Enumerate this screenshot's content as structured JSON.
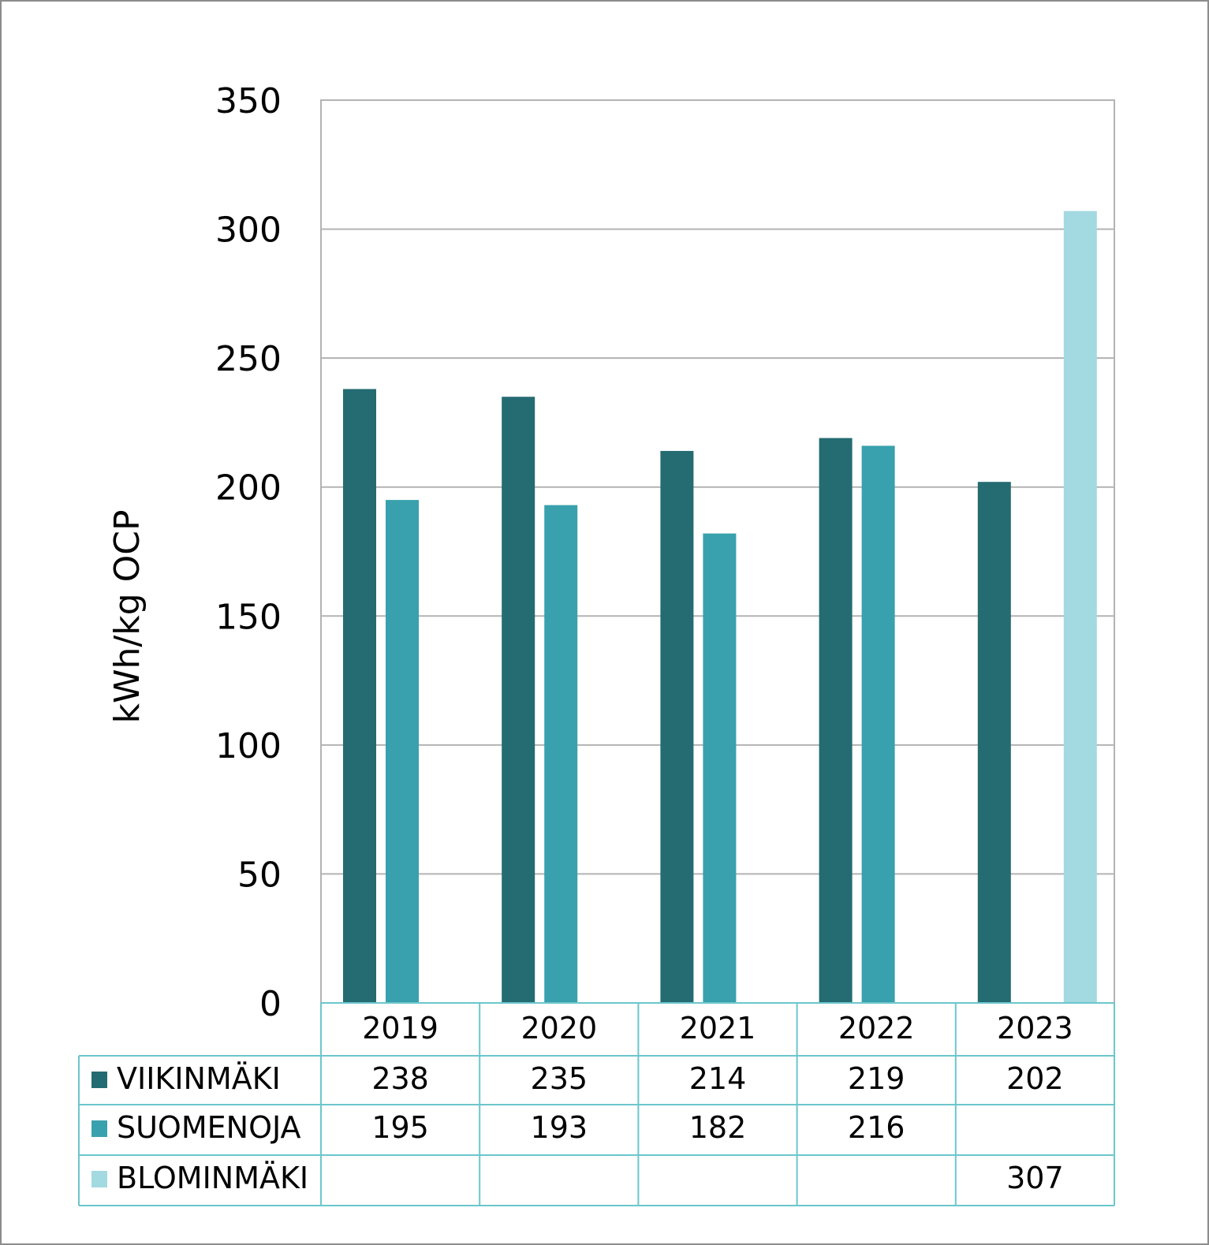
{
  "chart_data": {
    "type": "bar",
    "title": "",
    "xlabel": "",
    "ylabel": "kWh/kg OCP",
    "ylim": [
      0,
      350
    ],
    "yticks": [
      0,
      50,
      100,
      150,
      200,
      250,
      300,
      350
    ],
    "ytick_labels": [
      "0",
      "50",
      "100",
      "150",
      "200",
      "250",
      "300",
      "350"
    ],
    "grid": true,
    "legend": "data-table-below",
    "categories": [
      "2019",
      "2020",
      "2021",
      "2022",
      "2023"
    ],
    "series": [
      {
        "name": "VIIKINMÄKI",
        "color": "#256b72",
        "values": [
          238,
          235,
          214,
          219,
          202
        ]
      },
      {
        "name": "SUOMENOJA",
        "color": "#38a1ad",
        "values": [
          195,
          193,
          182,
          216,
          null
        ]
      },
      {
        "name": "BLOMINMÄKI",
        "color": "#a3d9e0",
        "values": [
          null,
          null,
          null,
          null,
          307
        ]
      }
    ]
  }
}
